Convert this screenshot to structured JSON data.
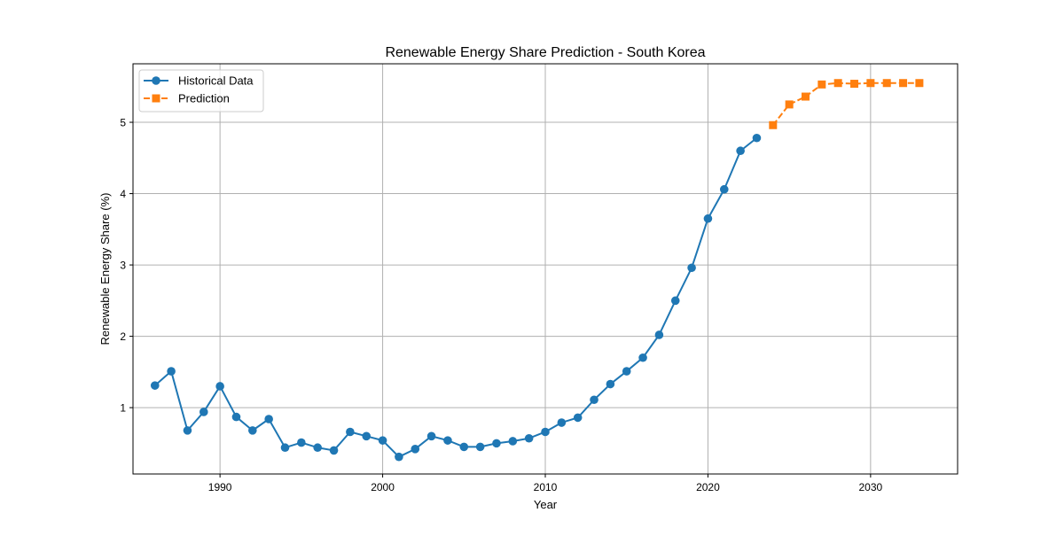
{
  "chart_data": {
    "type": "line",
    "title": "Renewable Energy Share Prediction - South Korea",
    "xlabel": "Year",
    "ylabel": "Renewable Energy Share (%)",
    "xlim": [
      1984.65,
      2035.35
    ],
    "ylim": [
      0.07,
      5.82
    ],
    "xticks": [
      1990,
      2000,
      2010,
      2020,
      2030
    ],
    "yticks": [
      1,
      2,
      3,
      4,
      5
    ],
    "grid": true,
    "legend_position": "top-left",
    "series": [
      {
        "name": "Historical Data",
        "color": "#1f77b4",
        "line_style": "solid",
        "marker": "circle",
        "x": [
          1986,
          1987,
          1988,
          1989,
          1990,
          1991,
          1992,
          1993,
          1994,
          1995,
          1996,
          1997,
          1998,
          1999,
          2000,
          2001,
          2002,
          2003,
          2004,
          2005,
          2006,
          2007,
          2008,
          2009,
          2010,
          2011,
          2012,
          2013,
          2014,
          2015,
          2016,
          2017,
          2018,
          2019,
          2020,
          2021,
          2022,
          2023
        ],
        "values": [
          1.31,
          1.51,
          0.68,
          0.94,
          1.3,
          0.87,
          0.68,
          0.84,
          0.44,
          0.51,
          0.44,
          0.4,
          0.66,
          0.6,
          0.54,
          0.31,
          0.42,
          0.6,
          0.54,
          0.45,
          0.45,
          0.5,
          0.53,
          0.57,
          0.66,
          0.79,
          0.86,
          1.11,
          1.33,
          1.51,
          1.7,
          2.02,
          2.5,
          2.96,
          3.65,
          4.06,
          4.6,
          4.78
        ]
      },
      {
        "name": "Prediction",
        "color": "#ff7f0e",
        "line_style": "dashed",
        "marker": "square",
        "x": [
          2024,
          2025,
          2026,
          2027,
          2028,
          2029,
          2030,
          2031,
          2032,
          2033
        ],
        "values": [
          4.96,
          5.25,
          5.36,
          5.53,
          5.55,
          5.54,
          5.55,
          5.55,
          5.55,
          5.55
        ]
      }
    ]
  }
}
